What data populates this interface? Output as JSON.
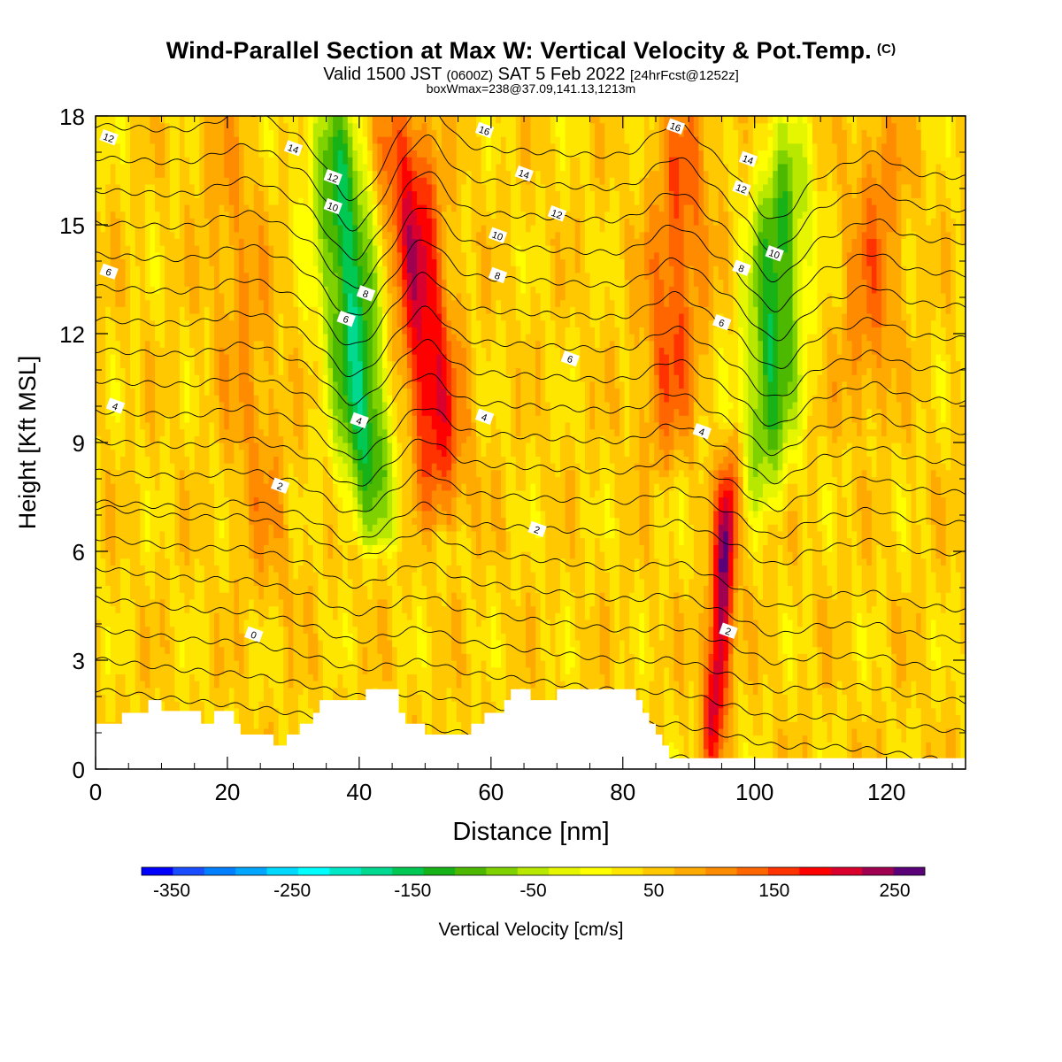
{
  "header": {
    "title": "Wind-Parallel Section at Max W: Vertical Velocity & Pot.Temp.",
    "copyright": "(C)",
    "valid_line": {
      "prefix": "Valid 1500 JST",
      "utc": "(0600Z)",
      "date": "SAT 5 Feb 2022",
      "forecast": "[24hrFcst@1252z]"
    },
    "box_info": "boxWmax=238@37.09,141.13,1213m"
  },
  "chart_data": {
    "type": "heatmap",
    "xlabel": "Distance [nm]",
    "ylabel": "Height [Kft MSL]",
    "xlim": [
      0,
      132
    ],
    "ylim": [
      0,
      18
    ],
    "x_ticks": [
      "0",
      "20",
      "40",
      "60",
      "80",
      "100",
      "120"
    ],
    "y_ticks": [
      "0",
      "3",
      "6",
      "9",
      "12",
      "15",
      "18"
    ],
    "x_tick_values": [
      0,
      20,
      40,
      60,
      80,
      100,
      120
    ],
    "y_tick_values": [
      0,
      3,
      6,
      9,
      12,
      15,
      18
    ],
    "colorbar": {
      "title": "Vertical Velocity [cm/s]",
      "labels": [
        "-350",
        "-250",
        "-150",
        "-50",
        "50",
        "150",
        "250"
      ],
      "label_values": [
        -350,
        -250,
        -150,
        -50,
        50,
        150,
        250
      ],
      "range": [
        -375,
        275
      ],
      "bins": 25,
      "colors": [
        "#0000ff",
        "#1a4dff",
        "#0080ff",
        "#00a6ff",
        "#00d9ff",
        "#00ffff",
        "#00e8c6",
        "#00d98f",
        "#00c853",
        "#17b217",
        "#4cb900",
        "#80d100",
        "#b9e800",
        "#e6f500",
        "#ffff00",
        "#ffe600",
        "#ffc800",
        "#ffaa00",
        "#ff8c00",
        "#ff6600",
        "#ff3300",
        "#ff0000",
        "#d9002e",
        "#a00050",
        "#5a0078"
      ]
    },
    "w_features": [
      {
        "type": "updraft",
        "x": 49.5,
        "y_bottom": 7.5,
        "y_top": 18,
        "peak_cm_s": 200
      },
      {
        "type": "updraft",
        "x": 95,
        "y_bottom": 0.5,
        "y_top": 8.5,
        "peak_cm_s": 238
      },
      {
        "type": "updraft",
        "x": 88,
        "y_bottom": 9,
        "y_top": 18,
        "peak_cm_s": 140
      },
      {
        "type": "updraft",
        "x": 23,
        "y_bottom": 5,
        "y_top": 18,
        "peak_cm_s": 90
      },
      {
        "type": "updraft",
        "x": 118,
        "y_bottom": 10,
        "y_top": 18,
        "peak_cm_s": 110
      },
      {
        "type": "downdraft",
        "x": 39,
        "y_bottom": 7,
        "y_top": 18,
        "peak_cm_s": -170
      },
      {
        "type": "downdraft",
        "x": 103,
        "y_bottom": 8,
        "y_top": 17,
        "peak_cm_s": -140
      }
    ],
    "potential_temperature_contours": {
      "units": "C",
      "interval": 1,
      "levels": [
        -1,
        0,
        1,
        2,
        3,
        4,
        5,
        6,
        7,
        8,
        9,
        10,
        11,
        12,
        13,
        14,
        15,
        16,
        17,
        18
      ],
      "labels": [
        {
          "text": "12",
          "x": 2,
          "y": 17.4
        },
        {
          "text": "14",
          "x": 30,
          "y": 17.1
        },
        {
          "text": "12",
          "x": 36,
          "y": 16.3
        },
        {
          "text": "10",
          "x": 36,
          "y": 15.5
        },
        {
          "text": "8",
          "x": 41,
          "y": 13.1
        },
        {
          "text": "6",
          "x": 38,
          "y": 12.4
        },
        {
          "text": "4",
          "x": 40,
          "y": 9.6
        },
        {
          "text": "16",
          "x": 59,
          "y": 17.6
        },
        {
          "text": "14",
          "x": 65,
          "y": 16.4
        },
        {
          "text": "12",
          "x": 70,
          "y": 15.3
        },
        {
          "text": "10",
          "x": 61,
          "y": 14.7
        },
        {
          "text": "8",
          "x": 61,
          "y": 13.6
        },
        {
          "text": "6",
          "x": 72,
          "y": 11.3
        },
        {
          "text": "4",
          "x": 59,
          "y": 9.7
        },
        {
          "text": "16",
          "x": 88,
          "y": 17.7
        },
        {
          "text": "14",
          "x": 99,
          "y": 16.8
        },
        {
          "text": "12",
          "x": 98,
          "y": 16.0
        },
        {
          "text": "10",
          "x": 103,
          "y": 14.2
        },
        {
          "text": "8",
          "x": 98,
          "y": 13.8
        },
        {
          "text": "6",
          "x": 95,
          "y": 12.3
        },
        {
          "text": "4",
          "x": 92,
          "y": 9.3
        },
        {
          "text": "6",
          "x": 2,
          "y": 13.7
        },
        {
          "text": "4",
          "x": 3,
          "y": 10.0
        },
        {
          "text": "2",
          "x": 28,
          "y": 7.8
        },
        {
          "text": "2",
          "x": 67,
          "y": 6.6
        },
        {
          "text": "0",
          "x": 24,
          "y": 3.7
        },
        {
          "text": "2",
          "x": 96,
          "y": 3.8
        }
      ]
    },
    "terrain_kft": [
      [
        0,
        1.25
      ],
      [
        4,
        1.25
      ],
      [
        4,
        1.55
      ],
      [
        8,
        1.55
      ],
      [
        8,
        1.9
      ],
      [
        10,
        1.9
      ],
      [
        10,
        1.6
      ],
      [
        16,
        1.6
      ],
      [
        16,
        1.25
      ],
      [
        18,
        1.25
      ],
      [
        18,
        1.6
      ],
      [
        21,
        1.6
      ],
      [
        21,
        1.25
      ],
      [
        22,
        1.25
      ],
      [
        22,
        0.95
      ],
      [
        27,
        0.95
      ],
      [
        27,
        0.65
      ],
      [
        29,
        0.65
      ],
      [
        29,
        0.95
      ],
      [
        31,
        0.95
      ],
      [
        31,
        1.25
      ],
      [
        33,
        1.25
      ],
      [
        33,
        1.55
      ],
      [
        34,
        1.55
      ],
      [
        34,
        1.9
      ],
      [
        41,
        1.9
      ],
      [
        41,
        2.2
      ],
      [
        46,
        2.2
      ],
      [
        46,
        1.55
      ],
      [
        47,
        1.55
      ],
      [
        47,
        1.25
      ],
      [
        50,
        1.25
      ],
      [
        50,
        0.95
      ],
      [
        57,
        0.95
      ],
      [
        57,
        1.25
      ],
      [
        59,
        1.25
      ],
      [
        59,
        1.55
      ],
      [
        62,
        1.55
      ],
      [
        62,
        1.9
      ],
      [
        63,
        1.9
      ],
      [
        63,
        2.2
      ],
      [
        66,
        2.2
      ],
      [
        66,
        1.9
      ],
      [
        70,
        1.9
      ],
      [
        70,
        2.2
      ],
      [
        82,
        2.2
      ],
      [
        82,
        1.9
      ],
      [
        83,
        1.9
      ],
      [
        83,
        1.55
      ],
      [
        84,
        1.55
      ],
      [
        84,
        1.25
      ],
      [
        85,
        1.25
      ],
      [
        85,
        0.95
      ],
      [
        86,
        0.95
      ],
      [
        86,
        0.65
      ],
      [
        87,
        0.65
      ],
      [
        87,
        0.3
      ],
      [
        132,
        0.3
      ]
    ]
  }
}
